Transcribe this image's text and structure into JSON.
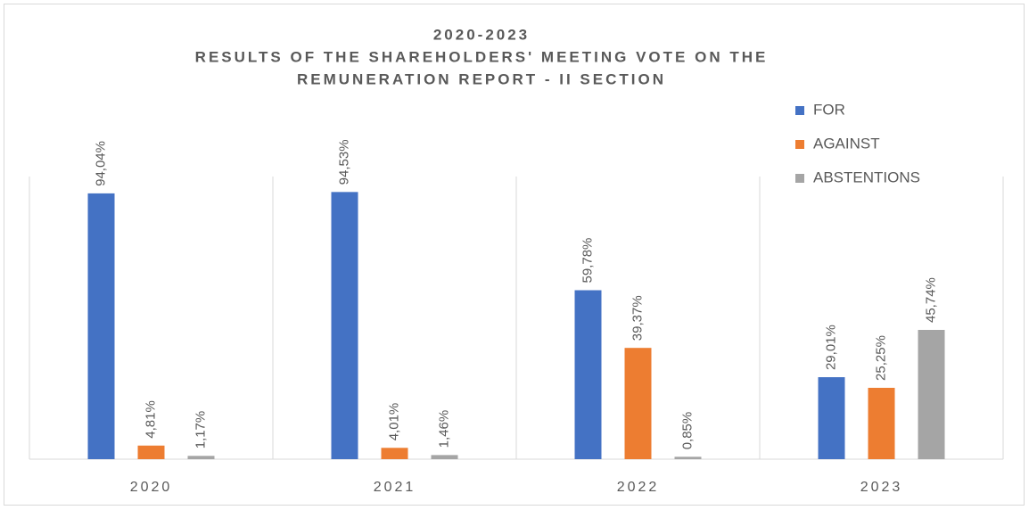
{
  "chart_data": {
    "type": "bar",
    "title": [
      "2020-2023",
      "RESULTS OF THE SHAREHOLDERS' MEETING VOTE ON THE",
      "REMUNERATION REPORT - II SECTION"
    ],
    "categories": [
      "2020",
      "2021",
      "2022",
      "2023"
    ],
    "series": [
      {
        "name": "FOR",
        "color": "#4472c4",
        "values": [
          94.04,
          94.53,
          59.78,
          29.01
        ],
        "value_labels": [
          "94,04%",
          "94,53%",
          "59,78%",
          "29,01%"
        ]
      },
      {
        "name": "AGAINST",
        "color": "#ed7d31",
        "values": [
          4.81,
          4.01,
          39.37,
          25.25
        ],
        "value_labels": [
          "4,81%",
          "4,01%",
          "39,37%",
          "25,25%"
        ]
      },
      {
        "name": "ABSTENTIONS",
        "color": "#a5a5a5",
        "values": [
          1.17,
          1.46,
          0.85,
          45.74
        ],
        "value_labels": [
          "1,17%",
          "1,46%",
          "0,85%",
          "45,74%"
        ]
      }
    ],
    "ylim": [
      0,
      100
    ],
    "legend": "top-right"
  }
}
